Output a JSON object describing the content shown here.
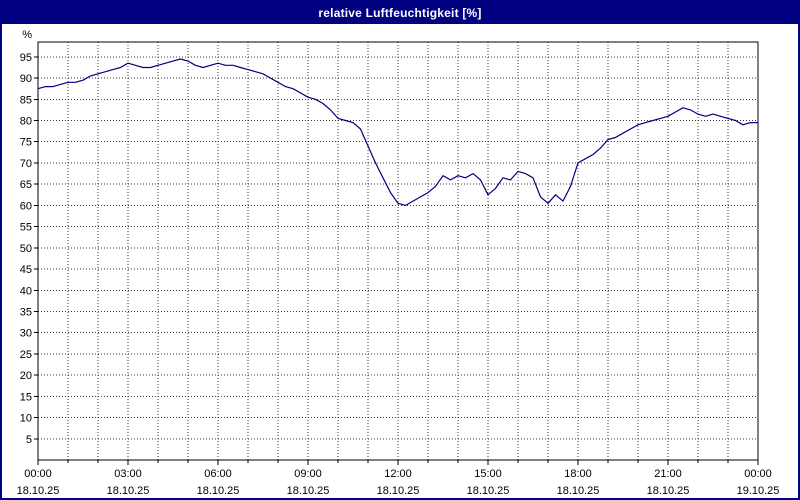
{
  "window": {
    "title": "relative Luftfeuchtigkeit [%]"
  },
  "colors": {
    "titlebar_bg": "#000080",
    "titlebar_text": "#ffffff",
    "window_border": "#000080",
    "plot_bg": "#ffffff",
    "grid": "#3a3a3a",
    "axis": "#000000",
    "line": "#000080",
    "label_text": "#000000"
  },
  "chart_data": {
    "type": "line",
    "title": "relative Luftfeuchtigkeit [%]",
    "ylabel": "%",
    "ylim": [
      0,
      98.5
    ],
    "xlim_hours": [
      0,
      24
    ],
    "grid": "dotted",
    "legend_position": "none",
    "y_ticks": [
      5,
      10,
      15,
      20,
      25,
      30,
      35,
      40,
      45,
      50,
      55,
      60,
      65,
      70,
      75,
      80,
      85,
      90,
      95
    ],
    "x_minor_tick_hours": 1,
    "x_ticks": [
      {
        "hour": 0,
        "time": "00:00",
        "date": "18.10.25"
      },
      {
        "hour": 3,
        "time": "03:00",
        "date": "18.10.25"
      },
      {
        "hour": 6,
        "time": "06:00",
        "date": "18.10.25"
      },
      {
        "hour": 9,
        "time": "09:00",
        "date": "18.10.25"
      },
      {
        "hour": 12,
        "time": "12:00",
        "date": "18.10.25"
      },
      {
        "hour": 15,
        "time": "15:00",
        "date": "18.10.25"
      },
      {
        "hour": 18,
        "time": "18:00",
        "date": "18.10.25"
      },
      {
        "hour": 21,
        "time": "21:00",
        "date": "18.10.25"
      },
      {
        "hour": 24,
        "time": "00:00",
        "date": "19.10.25"
      }
    ],
    "series": [
      {
        "name": "relative Luftfeuchtigkeit",
        "unit": "%",
        "start_hour": 0,
        "interval_hours": 0.25,
        "values": [
          87.5,
          88,
          88,
          88.5,
          89,
          89,
          89.5,
          90.5,
          91,
          91.5,
          92,
          92.5,
          93.5,
          93,
          92.5,
          92.5,
          93,
          93.5,
          94,
          94.5,
          94,
          93,
          92.5,
          93,
          93.5,
          93,
          93,
          92.5,
          92,
          91.5,
          91,
          90,
          89,
          88,
          87.5,
          86.5,
          85.5,
          85,
          84,
          82.5,
          80.5,
          80,
          79.5,
          78,
          74,
          70,
          66.5,
          63,
          60.5,
          60,
          61,
          62,
          63,
          64.5,
          67,
          66,
          67,
          66.5,
          67.5,
          66,
          62.5,
          64,
          66.5,
          66,
          68,
          67.5,
          66.5,
          62,
          60.5,
          62.5,
          61,
          64.5,
          70,
          71,
          72,
          73.5,
          75.5,
          76,
          77,
          78,
          79,
          79.5,
          80,
          80.5,
          81,
          82,
          83,
          82.5,
          81.5,
          81,
          81.5,
          81,
          80.5,
          80,
          79,
          79.5,
          79.5
        ]
      }
    ]
  }
}
